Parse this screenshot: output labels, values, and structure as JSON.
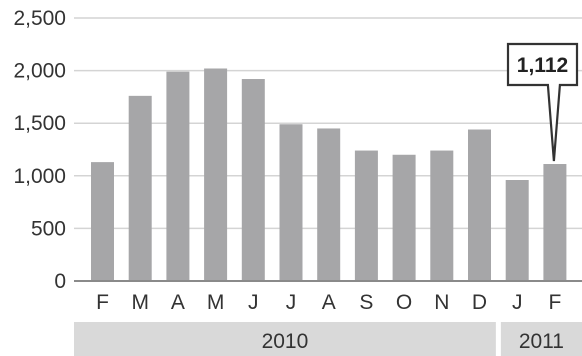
{
  "chart_data": {
    "type": "bar",
    "title": "",
    "xlabel": "",
    "ylabel": "",
    "categories": [
      "F",
      "M",
      "A",
      "M",
      "J",
      "J",
      "A",
      "S",
      "O",
      "N",
      "D",
      "J",
      "F"
    ],
    "values": [
      1130,
      1760,
      1990,
      2020,
      1920,
      1490,
      1450,
      1240,
      1200,
      1240,
      1440,
      960,
      1112
    ],
    "ylim": [
      0,
      2500
    ],
    "yticks": [
      0,
      500,
      1000,
      1500,
      2000,
      2500
    ],
    "ytick_labels": [
      "0",
      "500",
      "1,000",
      "1,500",
      "2,000",
      "2,500"
    ],
    "grid": true,
    "year_groups": [
      {
        "label": "2010",
        "start": 0,
        "end": 10
      },
      {
        "label": "2011",
        "start": 11,
        "end": 12
      }
    ],
    "callout": {
      "index": 12,
      "label": "1,112"
    },
    "colors": {
      "bar": "#a6a6a8",
      "grid": "#d4d4d4",
      "baseline": "#8a8a8a",
      "year_band": "#d9d9d9",
      "callout_border": "#333333",
      "callout_fill": "#ffffff"
    }
  }
}
